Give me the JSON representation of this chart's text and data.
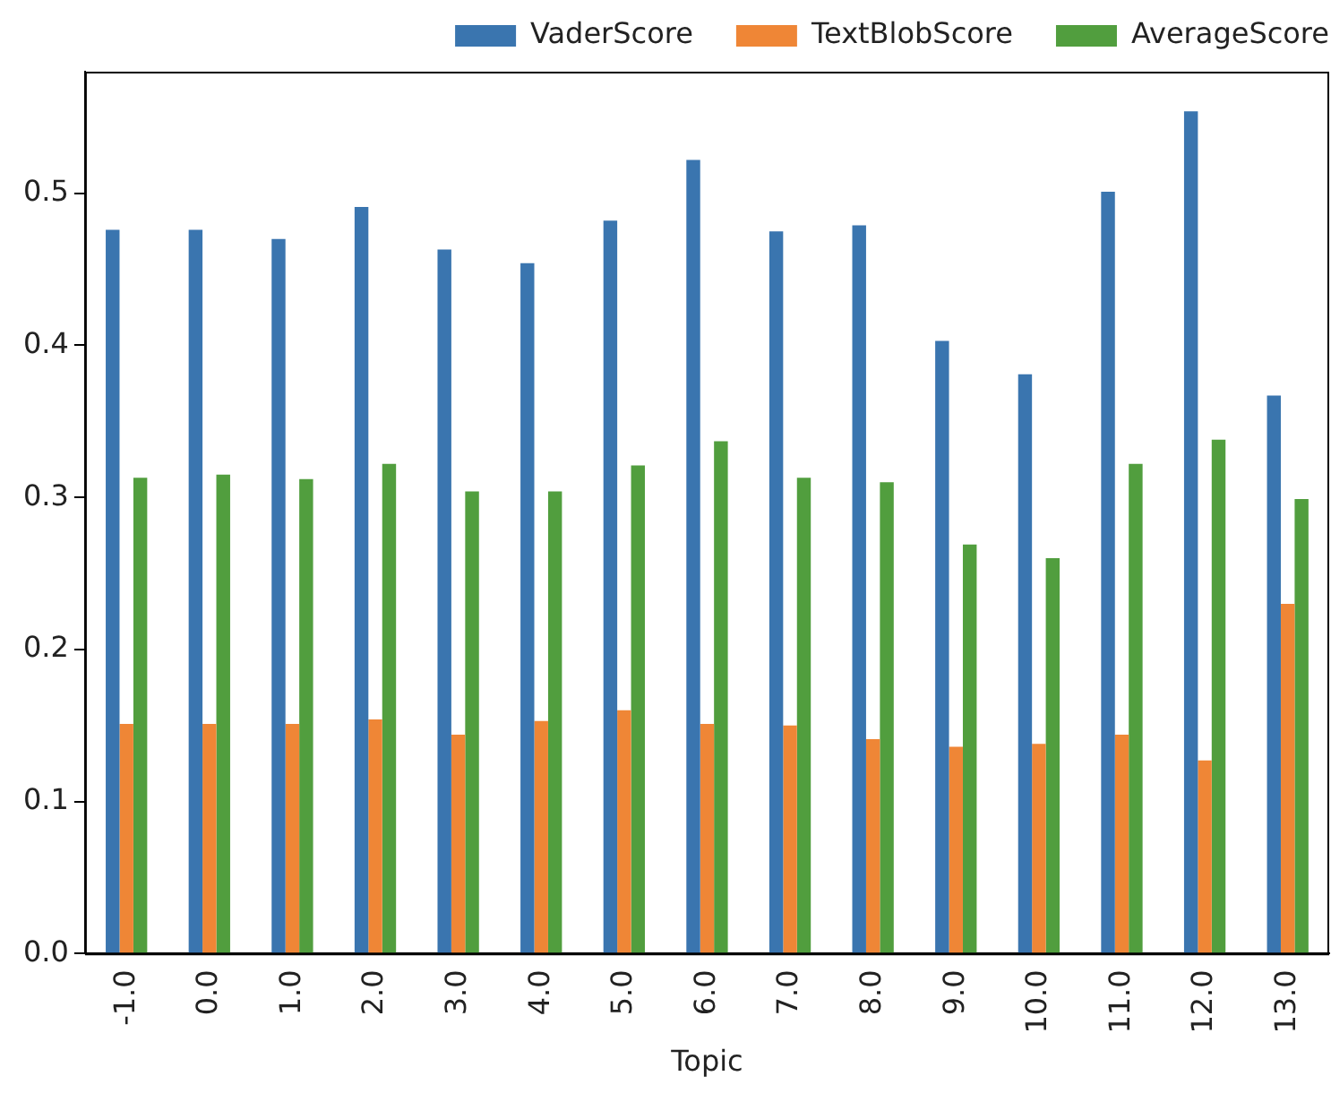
{
  "chart_data": {
    "type": "bar",
    "xlabel": "Topic",
    "categories": [
      "-1.0",
      "0.0",
      "1.0",
      "2.0",
      "3.0",
      "4.0",
      "5.0",
      "6.0",
      "7.0",
      "8.0",
      "9.0",
      "10.0",
      "11.0",
      "12.0",
      "13.0"
    ],
    "series": [
      {
        "name": "VaderScore",
        "color": "#3a75af",
        "values": [
          0.476,
          0.476,
          0.47,
          0.491,
          0.463,
          0.454,
          0.482,
          0.522,
          0.475,
          0.479,
          0.403,
          0.381,
          0.501,
          0.554,
          0.367
        ]
      },
      {
        "name": "TextBlobScore",
        "color": "#ef8636",
        "values": [
          0.151,
          0.151,
          0.151,
          0.154,
          0.144,
          0.153,
          0.16,
          0.151,
          0.15,
          0.141,
          0.136,
          0.138,
          0.144,
          0.127,
          0.23
        ]
      },
      {
        "name": "AverageScore",
        "color": "#519e3e",
        "values": [
          0.313,
          0.315,
          0.312,
          0.322,
          0.304,
          0.304,
          0.321,
          0.337,
          0.313,
          0.31,
          0.269,
          0.26,
          0.322,
          0.338,
          0.299
        ]
      }
    ],
    "ylim": [
      0,
      0.58
    ],
    "yticks": [
      {
        "value": 0,
        "label": "0.0"
      },
      0.1,
      0.2,
      0.3,
      0.4,
      0.5
    ],
    "grid": false,
    "legend": "top"
  }
}
